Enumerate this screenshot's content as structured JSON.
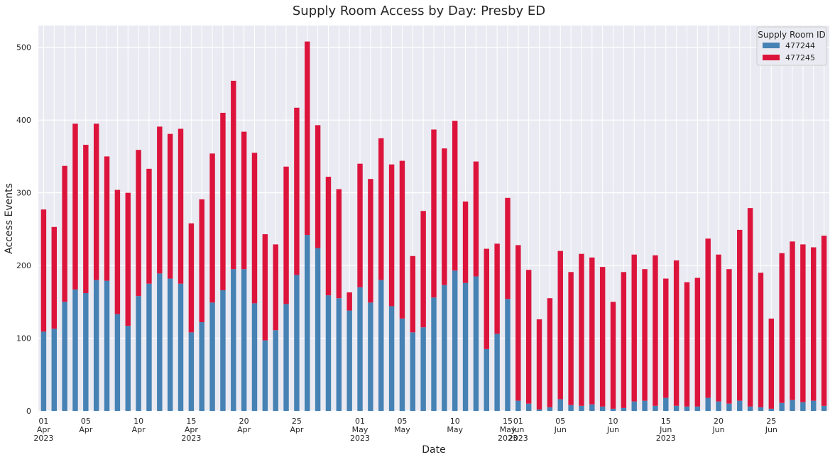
{
  "chart_data": {
    "type": "bar",
    "stacked": true,
    "title": "Supply Room Access by Day: Presby ED",
    "xlabel": "Date",
    "ylabel": "Access Events",
    "ylim": [
      0,
      530
    ],
    "yticks": [
      0,
      100,
      200,
      300,
      400,
      500
    ],
    "grid": true,
    "legend": {
      "title": "Supply Room ID",
      "position": "top-right"
    },
    "categories": [
      "2023-04-01",
      "2023-04-02",
      "2023-04-03",
      "2023-04-04",
      "2023-04-05",
      "2023-04-06",
      "2023-04-07",
      "2023-04-08",
      "2023-04-09",
      "2023-04-10",
      "2023-04-11",
      "2023-04-12",
      "2023-04-13",
      "2023-04-14",
      "2023-04-15",
      "2023-04-16",
      "2023-04-17",
      "2023-04-18",
      "2023-04-19",
      "2023-04-20",
      "2023-04-21",
      "2023-04-22",
      "2023-04-23",
      "2023-04-24",
      "2023-04-25",
      "2023-04-26",
      "2023-04-27",
      "2023-04-28",
      "2023-04-29",
      "2023-04-30",
      "2023-05-01",
      "2023-05-02",
      "2023-05-03",
      "2023-05-04",
      "2023-05-05",
      "2023-05-06",
      "2023-05-07",
      "2023-05-08",
      "2023-05-09",
      "2023-05-10",
      "2023-05-11",
      "2023-05-12",
      "2023-05-13",
      "2023-05-14",
      "2023-05-15",
      "2023-06-01",
      "2023-06-02",
      "2023-06-03",
      "2023-06-04",
      "2023-06-05",
      "2023-06-06",
      "2023-06-07",
      "2023-06-08",
      "2023-06-09",
      "2023-06-10",
      "2023-06-11",
      "2023-06-12",
      "2023-06-13",
      "2023-06-14",
      "2023-06-15",
      "2023-06-16",
      "2023-06-17",
      "2023-06-18",
      "2023-06-19",
      "2023-06-20",
      "2023-06-21",
      "2023-06-22",
      "2023-06-23",
      "2023-06-24",
      "2023-06-25",
      "2023-06-26",
      "2023-06-27",
      "2023-06-28",
      "2023-06-29",
      "2023-06-30"
    ],
    "tick_labels": [
      {
        "index": 0,
        "lines": [
          "01",
          "Apr",
          "2023"
        ]
      },
      {
        "index": 4,
        "lines": [
          "05",
          "Apr"
        ]
      },
      {
        "index": 9,
        "lines": [
          "10",
          "Apr"
        ]
      },
      {
        "index": 14,
        "lines": [
          "15",
          "Apr",
          "2023"
        ]
      },
      {
        "index": 19,
        "lines": [
          "20",
          "Apr"
        ]
      },
      {
        "index": 24,
        "lines": [
          "25",
          "Apr"
        ]
      },
      {
        "index": 30,
        "lines": [
          "01",
          "May",
          "2023"
        ]
      },
      {
        "index": 34,
        "lines": [
          "05",
          "May"
        ]
      },
      {
        "index": 39,
        "lines": [
          "10",
          "May"
        ]
      },
      {
        "index": 44,
        "lines": [
          "15",
          "May",
          "2023"
        ]
      },
      {
        "index": 45,
        "lines": [
          "01",
          "Jun",
          "2023"
        ]
      },
      {
        "index": 49,
        "lines": [
          "05",
          "Jun"
        ]
      },
      {
        "index": 54,
        "lines": [
          "10",
          "Jun"
        ]
      },
      {
        "index": 59,
        "lines": [
          "15",
          "Jun",
          "2023"
        ]
      },
      {
        "index": 64,
        "lines": [
          "20",
          "Jun"
        ]
      },
      {
        "index": 69,
        "lines": [
          "25",
          "Jun"
        ]
      }
    ],
    "series": [
      {
        "name": "477244",
        "color": "#4682b4",
        "values": [
          109,
          113,
          150,
          167,
          162,
          180,
          179,
          133,
          117,
          158,
          175,
          189,
          182,
          175,
          108,
          122,
          149,
          166,
          195,
          195,
          148,
          97,
          111,
          147,
          187,
          242,
          224,
          159,
          155,
          138,
          170,
          149,
          180,
          144,
          127,
          108,
          115,
          156,
          173,
          193,
          176,
          185,
          85,
          106,
          154,
          14,
          10,
          2,
          5,
          16,
          8,
          7,
          9,
          6,
          3,
          4,
          13,
          14,
          7,
          18,
          7,
          6,
          6,
          18,
          13,
          10,
          14,
          6,
          5,
          3,
          11,
          15,
          12,
          14,
          7
        ]
      },
      {
        "name": "477245",
        "color": "#dc143c",
        "values": [
          168,
          140,
          187,
          228,
          204,
          215,
          171,
          171,
          183,
          201,
          158,
          202,
          199,
          213,
          150,
          169,
          205,
          244,
          259,
          189,
          207,
          146,
          118,
          189,
          230,
          266,
          169,
          163,
          150,
          25,
          170,
          170,
          195,
          195,
          217,
          105,
          160,
          231,
          188,
          206,
          112,
          158,
          138,
          124,
          139,
          214,
          184,
          124,
          150,
          204,
          183,
          209,
          202,
          192,
          147,
          187,
          202,
          181,
          207,
          164,
          200,
          171,
          177,
          219,
          202,
          185,
          235,
          273,
          185,
          124,
          206,
          218,
          217,
          211,
          234
        ]
      }
    ]
  }
}
